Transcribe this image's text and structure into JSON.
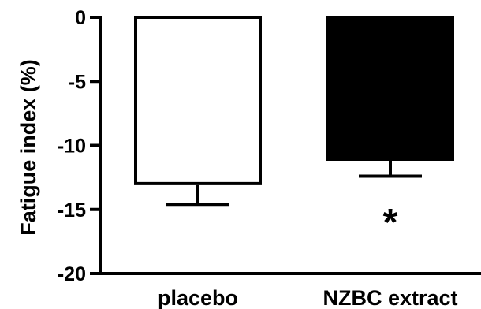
{
  "chart_data": {
    "type": "bar",
    "title": "",
    "xlabel": "",
    "ylabel": "Fatigue index (%)",
    "ylim": [
      -20,
      0
    ],
    "yticks": [
      0,
      -5,
      -10,
      -15,
      -20
    ],
    "ytick_labels": [
      "0",
      "-5",
      "-10",
      "-15",
      "-20"
    ],
    "categories": [
      "placebo",
      "NZBC extract"
    ],
    "values": [
      -13.1,
      -11.2
    ],
    "error": [
      1.5,
      1.2
    ],
    "bar_fill_colors": [
      "#ffffff",
      "#000000"
    ],
    "grid": false,
    "legend": false,
    "annotations": [
      {
        "text": "*",
        "category": "NZBC extract"
      }
    ]
  }
}
